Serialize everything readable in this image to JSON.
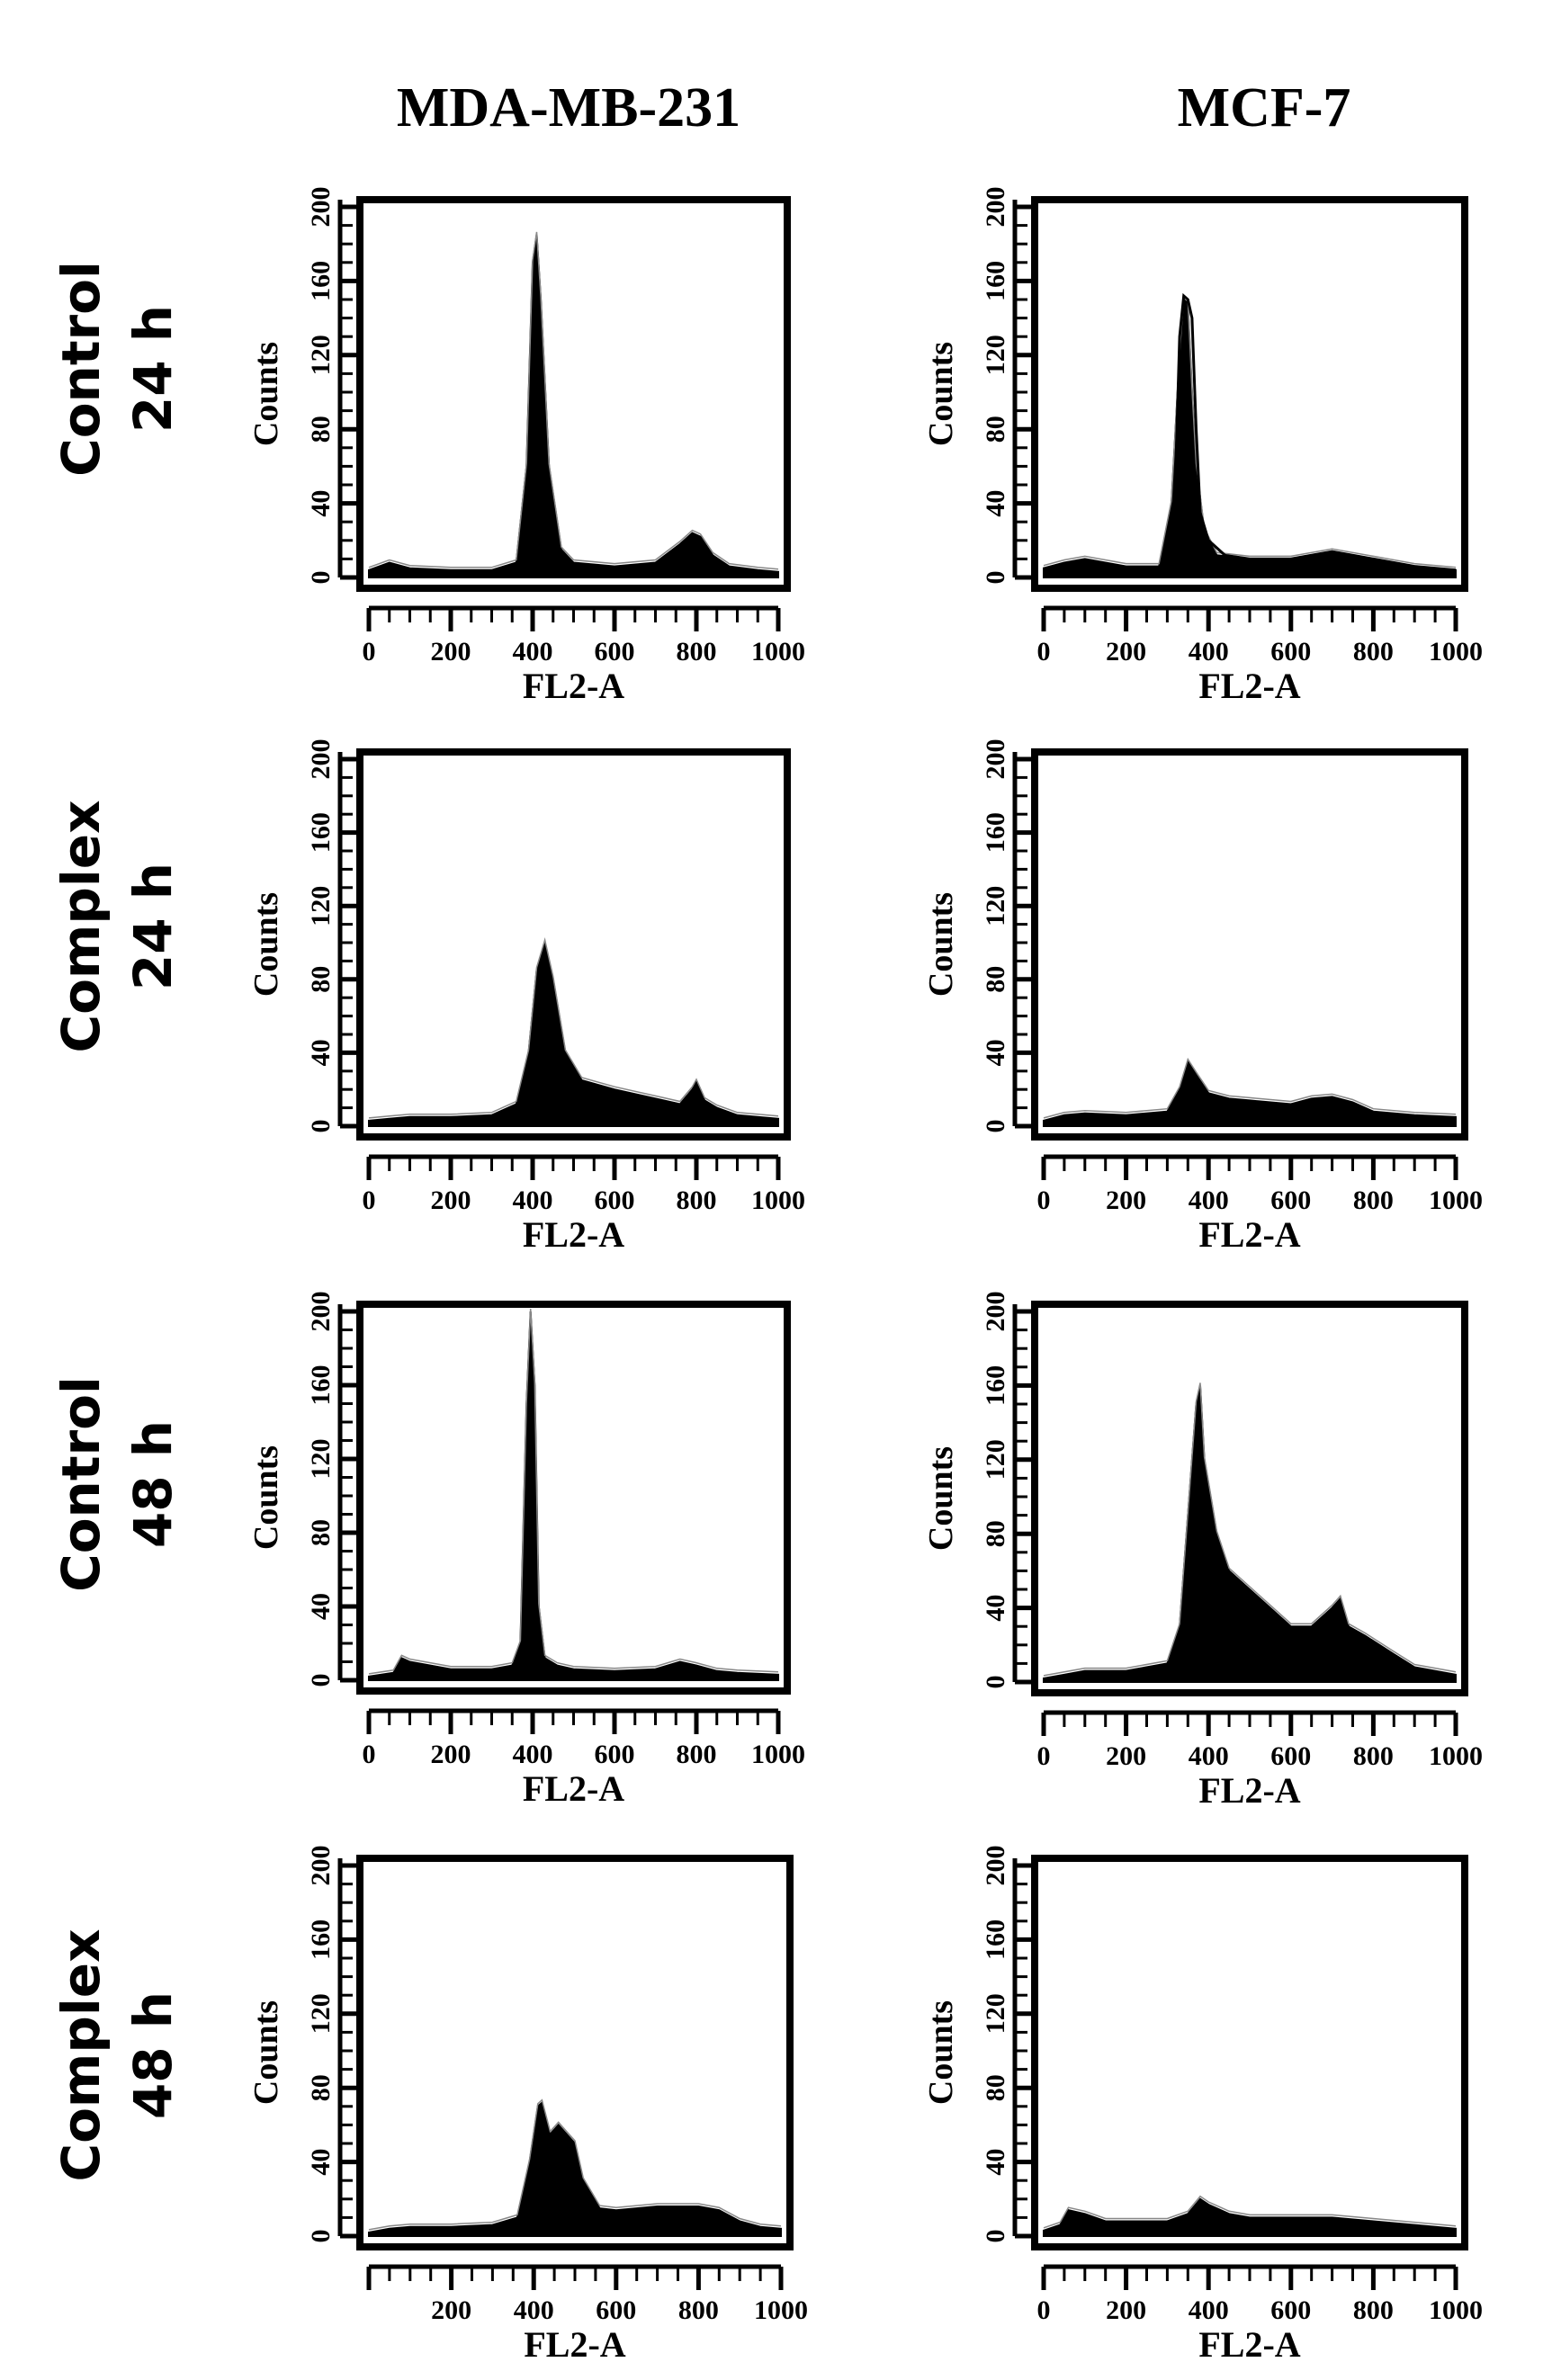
{
  "columns": [
    "MDA-MB-231",
    "MCF-7"
  ],
  "rows": [
    {
      "line1": "Control",
      "line2": "24 h"
    },
    {
      "line1": "Complex",
      "line2": "24 h"
    },
    {
      "line1": "Control",
      "line2": "48 h"
    },
    {
      "line1": "Complex",
      "line2": "48 h"
    }
  ],
  "chart_data": [
    {
      "type": "area",
      "title": "MDA-MB-231 Control 24 h",
      "xlabel": "FL2-A",
      "ylabel": "Counts",
      "xlim": [
        0,
        1000
      ],
      "ylim": [
        0,
        200
      ],
      "xticks": [
        "0",
        "200",
        "400",
        "600",
        "800",
        "1000"
      ],
      "yticks": [
        "0",
        "40",
        "80",
        "120",
        "160",
        "200"
      ],
      "x": [
        0,
        50,
        100,
        200,
        300,
        360,
        385,
        400,
        410,
        420,
        440,
        470,
        500,
        600,
        700,
        760,
        790,
        810,
        840,
        880,
        950,
        1000
      ],
      "y": [
        4,
        8,
        5,
        4,
        4,
        8,
        60,
        170,
        185,
        150,
        60,
        15,
        8,
        6,
        8,
        18,
        24,
        22,
        12,
        6,
        4,
        3
      ]
    },
    {
      "type": "area",
      "title": "MCF-7 Control 24 h",
      "xlabel": "FL2-A",
      "ylabel": "Counts",
      "xlim": [
        0,
        1000
      ],
      "ylim": [
        0,
        200
      ],
      "xticks": [
        "0",
        "200",
        "400",
        "600",
        "800",
        "1000"
      ],
      "yticks": [
        "0",
        "40",
        "80",
        "120",
        "160",
        "200"
      ],
      "x": [
        0,
        50,
        100,
        200,
        280,
        310,
        330,
        340,
        350,
        360,
        370,
        390,
        420,
        500,
        600,
        700,
        800,
        900,
        1000
      ],
      "y": [
        5,
        8,
        10,
        6,
        6,
        40,
        120,
        150,
        148,
        100,
        60,
        25,
        12,
        10,
        10,
        14,
        10,
        6,
        4
      ],
      "lines": [
        {
          "x": [
            290,
            310,
            320,
            330,
            340,
            350,
            360,
            370,
            380,
            400,
            440,
            500,
            600,
            700,
            800,
            900,
            1000
          ],
          "y": [
            8,
            20,
            55,
            130,
            152,
            150,
            140,
            80,
            35,
            20,
            12,
            10,
            10,
            14,
            10,
            6,
            4
          ]
        }
      ]
    },
    {
      "type": "area",
      "title": "MDA-MB-231 Complex 24 h",
      "xlabel": "FL2-A",
      "ylabel": "Counts",
      "xlim": [
        0,
        1000
      ],
      "ylim": [
        0,
        200
      ],
      "xticks": [
        "0",
        "200",
        "400",
        "600",
        "800",
        "1000"
      ],
      "yticks": [
        "0",
        "40",
        "80",
        "120",
        "160",
        "200"
      ],
      "x": [
        0,
        50,
        100,
        200,
        300,
        360,
        390,
        410,
        430,
        450,
        480,
        520,
        600,
        700,
        760,
        790,
        800,
        820,
        850,
        900,
        1000
      ],
      "y": [
        3,
        4,
        5,
        5,
        6,
        12,
        40,
        85,
        100,
        80,
        40,
        25,
        20,
        15,
        12,
        20,
        24,
        14,
        10,
        6,
        4
      ]
    },
    {
      "type": "area",
      "title": "MCF-7 Complex 24 h",
      "xlabel": "FL2-A",
      "ylabel": "Counts",
      "xlim": [
        0,
        1000
      ],
      "ylim": [
        0,
        200
      ],
      "xticks": [
        "0",
        "200",
        "400",
        "600",
        "800",
        "1000"
      ],
      "yticks": [
        "0",
        "40",
        "80",
        "120",
        "160",
        "200"
      ],
      "x": [
        0,
        50,
        100,
        200,
        300,
        330,
        350,
        370,
        400,
        450,
        500,
        600,
        650,
        700,
        750,
        800,
        900,
        1000
      ],
      "y": [
        3,
        6,
        7,
        6,
        8,
        20,
        35,
        28,
        18,
        15,
        14,
        12,
        15,
        16,
        13,
        8,
        6,
        5
      ]
    },
    {
      "type": "area",
      "title": "MDA-MB-231 Control 48 h",
      "xlabel": "FL2-A",
      "ylabel": "Counts",
      "xlim": [
        0,
        1000
      ],
      "ylim": [
        0,
        200
      ],
      "xticks": [
        "0",
        "200",
        "400",
        "600",
        "800",
        "1000"
      ],
      "yticks": [
        "0",
        "40",
        "80",
        "120",
        "160",
        "200"
      ],
      "x": [
        0,
        60,
        80,
        100,
        150,
        200,
        300,
        350,
        370,
        385,
        395,
        405,
        415,
        430,
        460,
        500,
        600,
        700,
        760,
        800,
        850,
        900,
        1000
      ],
      "y": [
        2,
        4,
        12,
        10,
        8,
        6,
        6,
        8,
        20,
        150,
        200,
        160,
        40,
        12,
        8,
        6,
        5,
        6,
        10,
        8,
        5,
        4,
        3
      ]
    },
    {
      "type": "area",
      "title": "MCF-7 Control 48 h",
      "xlabel": "FL2-A",
      "ylabel": "Counts",
      "xlim": [
        0,
        1000
      ],
      "ylim": [
        0,
        200
      ],
      "xticks": [
        "0",
        "200",
        "400",
        "600",
        "800",
        "1000"
      ],
      "yticks": [
        "0",
        "40",
        "80",
        "120",
        "160",
        "200"
      ],
      "x": [
        0,
        50,
        100,
        200,
        300,
        330,
        350,
        370,
        380,
        390,
        420,
        450,
        500,
        600,
        650,
        700,
        720,
        740,
        780,
        850,
        900,
        1000
      ],
      "y": [
        2,
        4,
        6,
        6,
        10,
        30,
        90,
        150,
        160,
        120,
        80,
        60,
        50,
        30,
        30,
        40,
        45,
        30,
        25,
        15,
        8,
        4
      ]
    },
    {
      "type": "area",
      "title": "MDA-MB-231 Complex 48 h",
      "xlabel": "FL2-A",
      "ylabel": "Counts",
      "xlim": [
        0,
        1000
      ],
      "ylim": [
        0,
        200
      ],
      "xticks": [
        "200",
        "400",
        "600",
        "800",
        "1000"
      ],
      "yticks": [
        "0",
        "40",
        "80",
        "120",
        "160",
        "200"
      ],
      "x": [
        0,
        50,
        100,
        200,
        300,
        360,
        390,
        410,
        420,
        440,
        460,
        480,
        500,
        520,
        560,
        600,
        700,
        800,
        850,
        900,
        950,
        1000
      ],
      "y": [
        2,
        4,
        5,
        5,
        6,
        10,
        40,
        70,
        72,
        55,
        60,
        55,
        50,
        30,
        15,
        14,
        16,
        16,
        14,
        8,
        5,
        4
      ]
    },
    {
      "type": "area",
      "title": "MCF-7 Complex 48 h",
      "xlabel": "FL2-A",
      "ylabel": "Counts",
      "xlim": [
        0,
        1000
      ],
      "ylim": [
        0,
        200
      ],
      "xticks": [
        "0",
        "200",
        "400",
        "600",
        "800",
        "1000"
      ],
      "yticks": [
        "0",
        "40",
        "80",
        "120",
        "160",
        "200"
      ],
      "x": [
        0,
        40,
        60,
        100,
        150,
        200,
        300,
        350,
        380,
        400,
        450,
        500,
        600,
        700,
        800,
        900,
        1000
      ],
      "y": [
        3,
        6,
        14,
        12,
        8,
        8,
        8,
        12,
        20,
        17,
        12,
        10,
        10,
        10,
        8,
        6,
        4
      ]
    }
  ]
}
